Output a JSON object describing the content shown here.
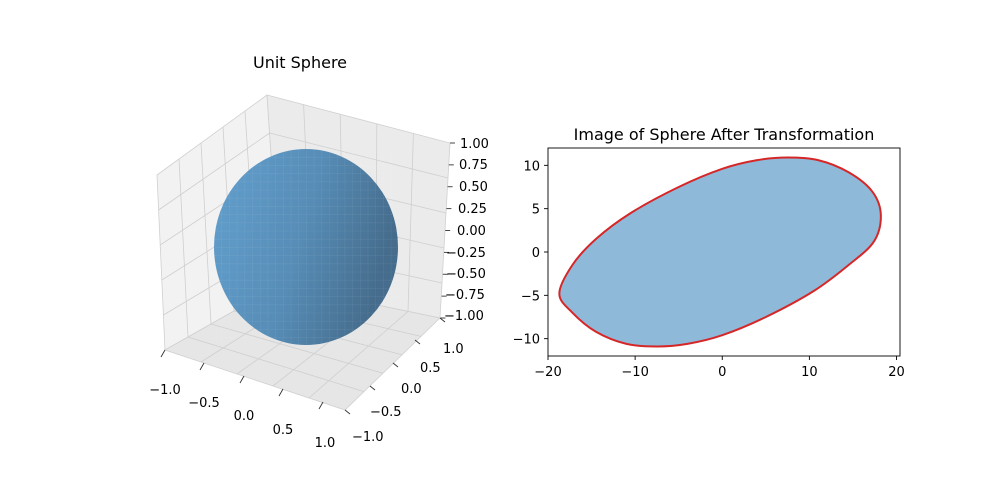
{
  "chart_data": [
    {
      "type": "surface3d",
      "title": "Unit Sphere",
      "surface": "unit sphere x^2 + y^2 + z^2 = 1",
      "xlim": [
        -1,
        1
      ],
      "ylim": [
        -1,
        1
      ],
      "zlim": [
        -1,
        1
      ],
      "x_ticks": [
        "−1.0",
        "−0.5",
        "0.0",
        "0.5",
        "1.0"
      ],
      "y_ticks": [
        "−1.0",
        "−0.5",
        "0.0",
        "0.5",
        "1.0"
      ],
      "z_ticks": [
        "−1.00",
        "−0.75",
        "−0.50",
        "−0.25",
        "0.00",
        "0.25",
        "0.50",
        "0.75",
        "1.00"
      ],
      "grid": true,
      "color": "#4f8fc0"
    },
    {
      "type": "area",
      "title": "Image of Sphere After Transformation",
      "shape": "ellipse",
      "boundary": [
        [
          -18.7,
          -4.8
        ],
        [
          -17.2,
          -1.5
        ],
        [
          -14.5,
          1.5
        ],
        [
          -10.5,
          4.5
        ],
        [
          -5.0,
          7.5
        ],
        [
          0.0,
          9.6
        ],
        [
          4.0,
          10.6
        ],
        [
          7.5,
          10.9
        ],
        [
          11.0,
          10.6
        ],
        [
          14.5,
          9.2
        ],
        [
          17.2,
          7.0
        ],
        [
          18.2,
          4.3
        ],
        [
          17.4,
          1.2
        ],
        [
          14.5,
          -1.5
        ],
        [
          10.5,
          -4.5
        ],
        [
          5.0,
          -7.5
        ],
        [
          0.0,
          -9.6
        ],
        [
          -4.0,
          -10.6
        ],
        [
          -7.5,
          -10.9
        ],
        [
          -11.0,
          -10.6
        ],
        [
          -14.5,
          -9.2
        ],
        [
          -17.2,
          -7.0
        ]
      ],
      "xlim": [
        -20,
        20.4
      ],
      "ylim": [
        -12.0,
        12.0
      ],
      "x_ticks": [
        -20,
        -10,
        0,
        10,
        20
      ],
      "y_ticks": [
        -10,
        -5,
        0,
        5,
        10
      ],
      "x_tick_labels": [
        "−20",
        "−10",
        "0",
        "10",
        "20"
      ],
      "y_tick_labels": [
        "−10",
        "−5",
        "0",
        "5",
        "10"
      ],
      "fill_color": "#8fb9d9",
      "edge_color": "#d62728"
    }
  ]
}
